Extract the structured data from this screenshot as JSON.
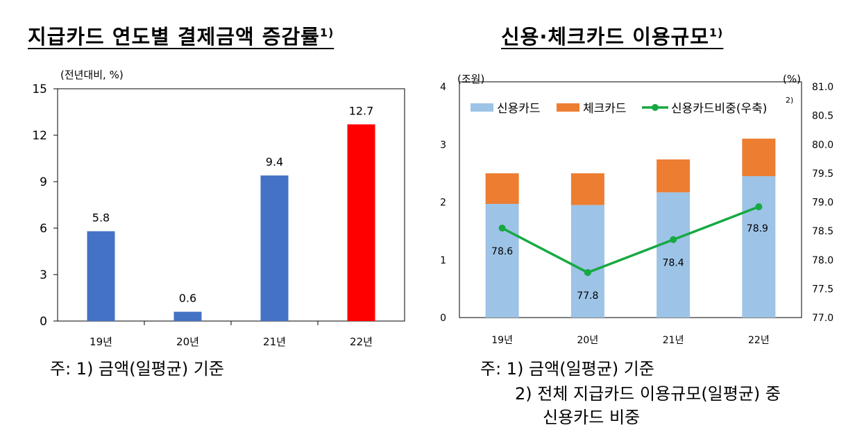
{
  "left_chart": {
    "title": "지급카드 연도별 결제금액 증감률",
    "title_sup": "1)",
    "unit": "(전년대비, %)",
    "yticks": [
      "0",
      "3",
      "6",
      "9",
      "12",
      "15"
    ],
    "note": "주:  1)  금액(일평균)  기준"
  },
  "right_chart": {
    "title": "신용·체크카드 이용규모",
    "title_sup": "1)",
    "left_unit": "(조원)",
    "right_unit": "(%)",
    "left_yticks": [
      "0",
      "1",
      "2",
      "3",
      "4"
    ],
    "right_yticks": [
      "77.0",
      "77.5",
      "78.0",
      "78.5",
      "79.0",
      "79.5",
      "80.0",
      "80.5",
      "81.0"
    ],
    "legend": {
      "credit": "신용카드",
      "check": "체크카드",
      "share": "신용카드비중(우축)",
      "share_sup": "2)"
    },
    "notes": [
      "주:  1)  금액(일평균)  기준",
      "2)  전체  지급카드  이용규모(일평균)  중",
      "신용카드  비중"
    ]
  },
  "chart_data": [
    {
      "type": "bar",
      "title": "지급카드 연도별 결제금액 증감률",
      "ylabel": "(전년대비, %)",
      "categories": [
        "19년",
        "20년",
        "21년",
        "22년"
      ],
      "values": [
        5.8,
        0.6,
        9.4,
        12.7
      ],
      "value_labels": [
        "5.8",
        "0.6",
        "9.4",
        "12.7"
      ],
      "ylim": [
        0,
        15
      ],
      "colors": [
        "#4472c4",
        "#4472c4",
        "#4472c4",
        "#ff0000"
      ],
      "grid": false
    },
    {
      "type": "bar",
      "stacked": true,
      "title": "신용·체크카드 이용규모",
      "categories": [
        "19년",
        "20년",
        "21년",
        "22년"
      ],
      "series": [
        {
          "name": "신용카드",
          "values": [
            1.97,
            1.95,
            2.17,
            2.45
          ],
          "color": "#9dc3e6",
          "axis": "left"
        },
        {
          "name": "체크카드",
          "values": [
            0.53,
            0.55,
            0.57,
            0.65
          ],
          "color": "#ed7d31",
          "axis": "left"
        },
        {
          "name": "신용카드비중(우축)",
          "type": "line",
          "values": [
            78.55,
            77.78,
            78.35,
            78.92
          ],
          "labels": [
            "78.6",
            "77.8",
            "78.4",
            "78.9"
          ],
          "color": "#16a942",
          "axis": "right"
        }
      ],
      "ylim": [
        0,
        4
      ],
      "y2lim": [
        77.0,
        81.0
      ],
      "ylabel": "(조원)",
      "y2label": "(%)",
      "legend": "top",
      "grid": false
    }
  ]
}
